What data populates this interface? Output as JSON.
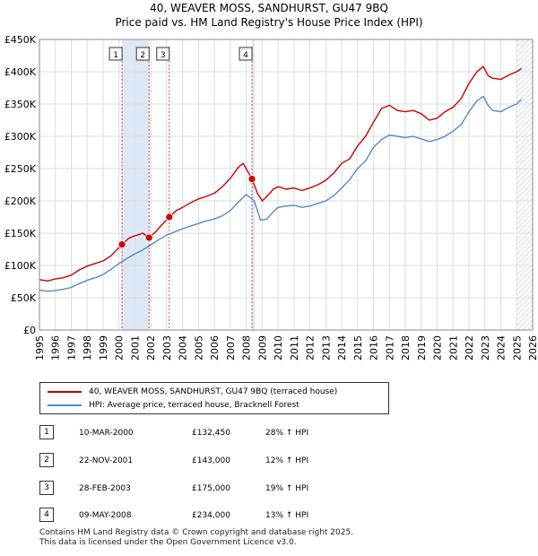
{
  "title_line1": "40, WEAVER MOSS, SANDHURST, GU47 9BQ",
  "title_line2": "Price paid vs. HM Land Registry's House Price Index (HPI)",
  "colors": {
    "price_paid": "#cc0000",
    "hpi": "#5588cc",
    "shade": "#dde8f7",
    "grid": "#dddddd",
    "marker_line": "#dd4444"
  },
  "legend": {
    "items": [
      {
        "label": "40, WEAVER MOSS, SANDHURST, GU47 9BQ (terraced house)"
      },
      {
        "label": "HPI: Average price, terraced house, Bracknell Forest"
      }
    ]
  },
  "transactions": [
    {
      "num": "1",
      "date": "10-MAR-2000",
      "price": "£132,450",
      "hpi_change": "28% ↑ HPI"
    },
    {
      "num": "2",
      "date": "22-NOV-2001",
      "price": "£143,000",
      "hpi_change": "12% ↑ HPI"
    },
    {
      "num": "3",
      "date": "28-FEB-2003",
      "price": "£175,000",
      "hpi_change": "19% ↑ HPI"
    },
    {
      "num": "4",
      "date": "09-MAY-2008",
      "price": "£234,000",
      "hpi_change": "13% ↑ HPI"
    }
  ],
  "footer_line1": "Contains HM Land Registry data © Crown copyright and database right 2025.",
  "footer_line2": "This data is licensed under the Open Government Licence v3.0.",
  "chart_data": {
    "type": "line",
    "title": "Price paid vs. HM Land Registry's House Price Index (HPI)",
    "xlabel": "",
    "ylabel": "",
    "xlim": [
      1995,
      2026
    ],
    "ylim": [
      0,
      450000
    ],
    "y_ticks": [
      0,
      50000,
      100000,
      150000,
      200000,
      250000,
      300000,
      350000,
      400000,
      450000
    ],
    "y_tick_labels": [
      "£0",
      "£50K",
      "£100K",
      "£150K",
      "£200K",
      "£250K",
      "£300K",
      "£350K",
      "£400K",
      "£450K"
    ],
    "x_ticks": [
      1995,
      1996,
      1997,
      1998,
      1999,
      2000,
      2001,
      2002,
      2003,
      2004,
      2005,
      2006,
      2007,
      2008,
      2009,
      2010,
      2011,
      2012,
      2013,
      2014,
      2015,
      2016,
      2017,
      2018,
      2019,
      2020,
      2021,
      2022,
      2023,
      2024,
      2025,
      2026
    ],
    "grid": true,
    "legend_position": "bottom",
    "shaded_ranges": [
      [
        2000.19,
        2001.89
      ],
      [
        2008.36,
        2008.36
      ]
    ],
    "future_hatch_from": 2025.0,
    "series": [
      {
        "name": "40, WEAVER MOSS, SANDHURST, GU47 9BQ (terraced house)",
        "x": [
          1995.0,
          1995.5,
          1996.0,
          1996.5,
          1997.0,
          1997.5,
          1998.0,
          1998.5,
          1999.0,
          1999.5,
          2000.19,
          2000.6,
          2001.0,
          2001.5,
          2001.89,
          2002.3,
          2002.7,
          2003.16,
          2003.6,
          2004.0,
          2004.5,
          2005.0,
          2005.5,
          2006.0,
          2006.5,
          2007.0,
          2007.5,
          2007.8,
          2008.36,
          2008.7,
          2009.0,
          2009.3,
          2009.7,
          2010.0,
          2010.5,
          2011.0,
          2011.5,
          2012.0,
          2012.5,
          2013.0,
          2013.5,
          2014.0,
          2014.5,
          2015.0,
          2015.5,
          2016.0,
          2016.5,
          2017.0,
          2017.5,
          2018.0,
          2018.5,
          2019.0,
          2019.5,
          2020.0,
          2020.5,
          2021.0,
          2021.5,
          2022.0,
          2022.5,
          2022.9,
          2023.2,
          2023.5,
          2024.0,
          2024.5,
          2025.0,
          2025.3
        ],
        "values": [
          78000,
          76000,
          79000,
          81000,
          85000,
          93000,
          99000,
          103000,
          107000,
          115000,
          132450,
          142000,
          146000,
          150000,
          143000,
          152000,
          163000,
          175000,
          185000,
          190000,
          197000,
          203000,
          207000,
          212000,
          222000,
          235000,
          252000,
          258000,
          234000,
          212000,
          200000,
          207000,
          218000,
          222000,
          218000,
          220000,
          216000,
          220000,
          225000,
          232000,
          243000,
          258000,
          265000,
          285000,
          300000,
          322000,
          343000,
          348000,
          340000,
          338000,
          340000,
          335000,
          325000,
          328000,
          338000,
          345000,
          358000,
          382000,
          400000,
          408000,
          394000,
          390000,
          388000,
          395000,
          400000,
          405000
        ]
      },
      {
        "name": "HPI: Average price, terraced house, Bracknell Forest",
        "x": [
          1995.0,
          1995.5,
          1996.0,
          1996.5,
          1997.0,
          1997.5,
          1998.0,
          1998.5,
          1999.0,
          1999.5,
          2000.0,
          2000.5,
          2001.0,
          2001.5,
          2002.0,
          2002.5,
          2003.0,
          2003.5,
          2004.0,
          2004.5,
          2005.0,
          2005.5,
          2006.0,
          2006.5,
          2007.0,
          2007.5,
          2008.0,
          2008.5,
          2008.9,
          2009.3,
          2009.7,
          2010.0,
          2010.5,
          2011.0,
          2011.5,
          2012.0,
          2012.5,
          2013.0,
          2013.5,
          2014.0,
          2014.5,
          2015.0,
          2015.5,
          2016.0,
          2016.5,
          2017.0,
          2017.5,
          2018.0,
          2018.5,
          2019.0,
          2019.5,
          2020.0,
          2020.5,
          2021.0,
          2021.5,
          2022.0,
          2022.5,
          2022.9,
          2023.2,
          2023.5,
          2024.0,
          2024.5,
          2025.0,
          2025.3
        ],
        "values": [
          62000,
          60000,
          61000,
          63000,
          66000,
          72000,
          77000,
          81000,
          86000,
          94000,
          103000,
          111000,
          118000,
          124000,
          132000,
          140000,
          147000,
          152000,
          157000,
          161000,
          165000,
          169000,
          172000,
          177000,
          185000,
          198000,
          210000,
          200000,
          170000,
          172000,
          183000,
          190000,
          192000,
          193000,
          190000,
          192000,
          196000,
          200000,
          208000,
          220000,
          233000,
          250000,
          262000,
          283000,
          295000,
          302000,
          300000,
          298000,
          300000,
          296000,
          292000,
          295000,
          300000,
          308000,
          318000,
          338000,
          355000,
          362000,
          348000,
          340000,
          338000,
          345000,
          350000,
          357000
        ]
      }
    ],
    "points": [
      {
        "label": "1",
        "x": 2000.19,
        "value": 132450
      },
      {
        "label": "2",
        "x": 2001.89,
        "value": 143000
      },
      {
        "label": "3",
        "x": 2003.16,
        "value": 175000
      },
      {
        "label": "4",
        "x": 2008.36,
        "value": 234000
      }
    ]
  }
}
